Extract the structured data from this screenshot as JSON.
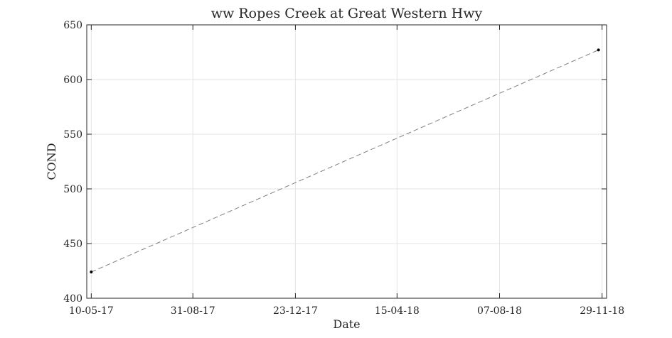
{
  "chart_data": {
    "type": "line",
    "title": "ww Ropes Creek at Great Western Hwy",
    "xlabel": "Date",
    "ylabel": "COND",
    "x_tick_labels": [
      "10-05-17",
      "31-08-17",
      "23-12-17",
      "15-04-18",
      "07-08-18",
      "29-11-18"
    ],
    "y_tick_labels": [
      "400",
      "450",
      "500",
      "550",
      "600",
      "650"
    ],
    "ylim": [
      400,
      650
    ],
    "xlim": [
      "2017-05-10",
      "2018-11-29"
    ],
    "grid": true,
    "series": [
      {
        "line_style": "dashed",
        "line_color": "#7f7f7f",
        "marker_color": "#000000",
        "points": [
          {
            "x": "2017-05-10",
            "y": 424
          },
          {
            "x": "2018-11-25",
            "y": 627
          }
        ]
      }
    ]
  }
}
